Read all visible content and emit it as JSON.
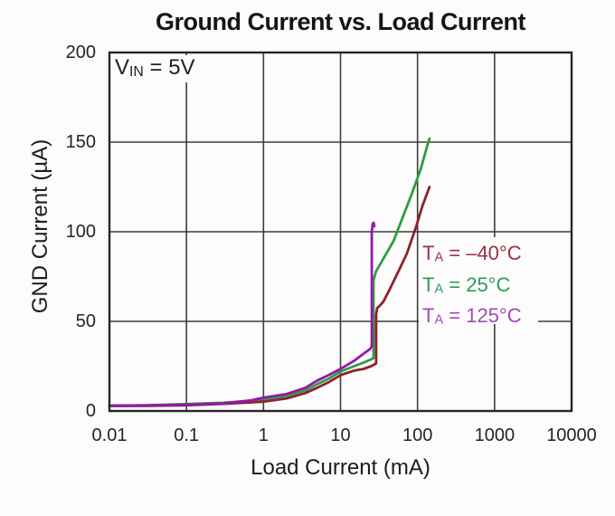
{
  "title": "Ground Current vs. Load Current",
  "annotation": {
    "var": "V",
    "sub": "IN",
    "rest": " = 5V"
  },
  "chart_data": {
    "type": "line",
    "title": "Ground Current vs. Load Current",
    "xlabel": "Load Current (mA)",
    "ylabel": "GND Current (µA)",
    "x_scale": "log",
    "xlim": [
      0.01,
      10000
    ],
    "ylim": [
      0,
      200
    ],
    "x_ticks": [
      0.01,
      0.1,
      1,
      10,
      100,
      1000,
      10000
    ],
    "x_tick_labels": [
      "0.01",
      "0.1",
      "1",
      "10",
      "100",
      "1000",
      "10000"
    ],
    "y_ticks": [
      0,
      50,
      100,
      150,
      200
    ],
    "y_tick_labels": [
      "0",
      "50",
      "100",
      "150",
      "200"
    ],
    "grid": true,
    "frame_color": "#262626",
    "grid_color": "#3d3d3d",
    "legend_position": "right-middle",
    "series": [
      {
        "id": "ta-25c",
        "name": "TA = 25°C",
        "legend": {
          "t": "T",
          "sub": "A",
          "rest": " = 25°C"
        },
        "color": "#2f9c44",
        "legend_color": "#2f9c55",
        "points": [
          [
            0.01,
            3
          ],
          [
            0.03,
            3.2
          ],
          [
            0.1,
            3.9
          ],
          [
            0.3,
            4.6
          ],
          [
            0.7,
            5.8
          ],
          [
            1,
            6.5
          ],
          [
            2,
            8.5
          ],
          [
            3.5,
            11.5
          ],
          [
            5,
            15
          ],
          [
            7,
            18
          ],
          [
            10,
            22
          ],
          [
            15,
            25
          ],
          [
            20,
            27
          ],
          [
            24,
            28.5
          ],
          [
            26.8,
            29.5
          ],
          [
            26.8,
            73
          ],
          [
            29,
            78
          ],
          [
            36,
            85
          ],
          [
            49,
            95
          ],
          [
            64,
            108
          ],
          [
            84,
            121
          ],
          [
            110,
            135
          ],
          [
            136,
            149
          ],
          [
            143,
            152
          ]
        ]
      },
      {
        "id": "ta-minus40c",
        "name": "TA = –40°C",
        "legend": {
          "t": "T",
          "sub": "A",
          "rest": " = –40°C"
        },
        "color": "#8e2130",
        "legend_color": "#9b3140",
        "points": [
          [
            0.01,
            2.8
          ],
          [
            0.03,
            2.9
          ],
          [
            0.1,
            3.2
          ],
          [
            0.3,
            4
          ],
          [
            0.7,
            4.8
          ],
          [
            1,
            5.2
          ],
          [
            2,
            7
          ],
          [
            3.5,
            10
          ],
          [
            5,
            13
          ],
          [
            7,
            16
          ],
          [
            10,
            20
          ],
          [
            15,
            22.5
          ],
          [
            20,
            23.5
          ],
          [
            25,
            25
          ],
          [
            29,
            26.5
          ],
          [
            29,
            54
          ],
          [
            30,
            57.5
          ],
          [
            32,
            58.5
          ],
          [
            36,
            61
          ],
          [
            43,
            67.5
          ],
          [
            56,
            77.5
          ],
          [
            73,
            88
          ],
          [
            96,
            103
          ],
          [
            115,
            114
          ],
          [
            143,
            125
          ]
        ]
      },
      {
        "id": "ta-125c",
        "name": "TA = 125°C",
        "legend": {
          "t": "T",
          "sub": "A",
          "rest": " = 125°C"
        },
        "color": "#9318ab",
        "legend_color": "#a449b6",
        "points": [
          [
            0.01,
            3
          ],
          [
            0.03,
            3.1
          ],
          [
            0.1,
            3.5
          ],
          [
            0.3,
            4.2
          ],
          [
            0.7,
            6
          ],
          [
            1,
            7.4
          ],
          [
            2,
            9.5
          ],
          [
            3.5,
            13
          ],
          [
            5,
            17
          ],
          [
            7,
            20
          ],
          [
            10,
            23.5
          ],
          [
            15,
            28
          ],
          [
            20,
            32
          ],
          [
            24,
            34.5
          ],
          [
            25.5,
            36
          ],
          [
            25.5,
            100
          ],
          [
            26.2,
            104.5
          ],
          [
            27,
            105
          ],
          [
            27.5,
            103
          ]
        ]
      }
    ],
    "legend_order": [
      "ta-minus40c",
      "ta-25c",
      "ta-125c"
    ]
  }
}
